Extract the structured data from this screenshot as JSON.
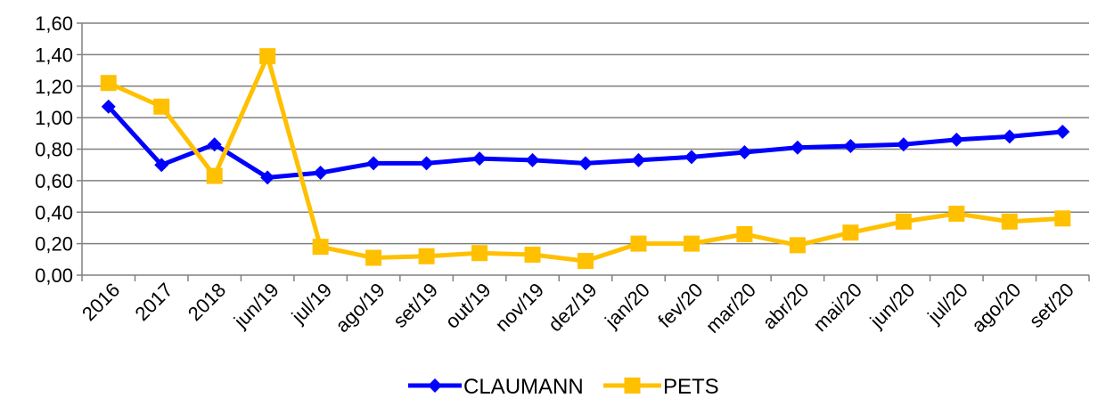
{
  "chart_data": {
    "type": "line",
    "title": "",
    "xlabel": "",
    "ylabel": "",
    "categories": [
      "2016",
      "2017",
      "2018",
      "jun/19",
      "jul/19",
      "ago/19",
      "set/19",
      "out/19",
      "nov/19",
      "dez/19",
      "jan/20",
      "fev/20",
      "mar/20",
      "abr/20",
      "mai/20",
      "jun/20",
      "jul/20",
      "ago/20",
      "set/20"
    ],
    "ylim": [
      0,
      1.6
    ],
    "yticks": [
      "0,00",
      "0,20",
      "0,40",
      "0,60",
      "0,80",
      "1,00",
      "1,20",
      "1,40",
      "1,60"
    ],
    "grid": true,
    "legend_position": "bottom",
    "series": [
      {
        "name": "CLAUMANN",
        "color": "#0000FF",
        "marker": "diamond",
        "values": [
          1.07,
          0.7,
          0.83,
          0.62,
          0.65,
          0.71,
          0.71,
          0.74,
          0.73,
          0.71,
          0.73,
          0.75,
          0.78,
          0.81,
          0.82,
          0.83,
          0.86,
          0.88,
          0.91
        ]
      },
      {
        "name": "PETS",
        "color": "#FFC000",
        "marker": "square",
        "values": [
          1.22,
          1.07,
          0.63,
          1.39,
          0.18,
          0.11,
          0.12,
          0.14,
          0.13,
          0.09,
          0.2,
          0.2,
          0.26,
          0.19,
          0.27,
          0.34,
          0.39,
          0.34,
          0.36
        ]
      }
    ]
  }
}
